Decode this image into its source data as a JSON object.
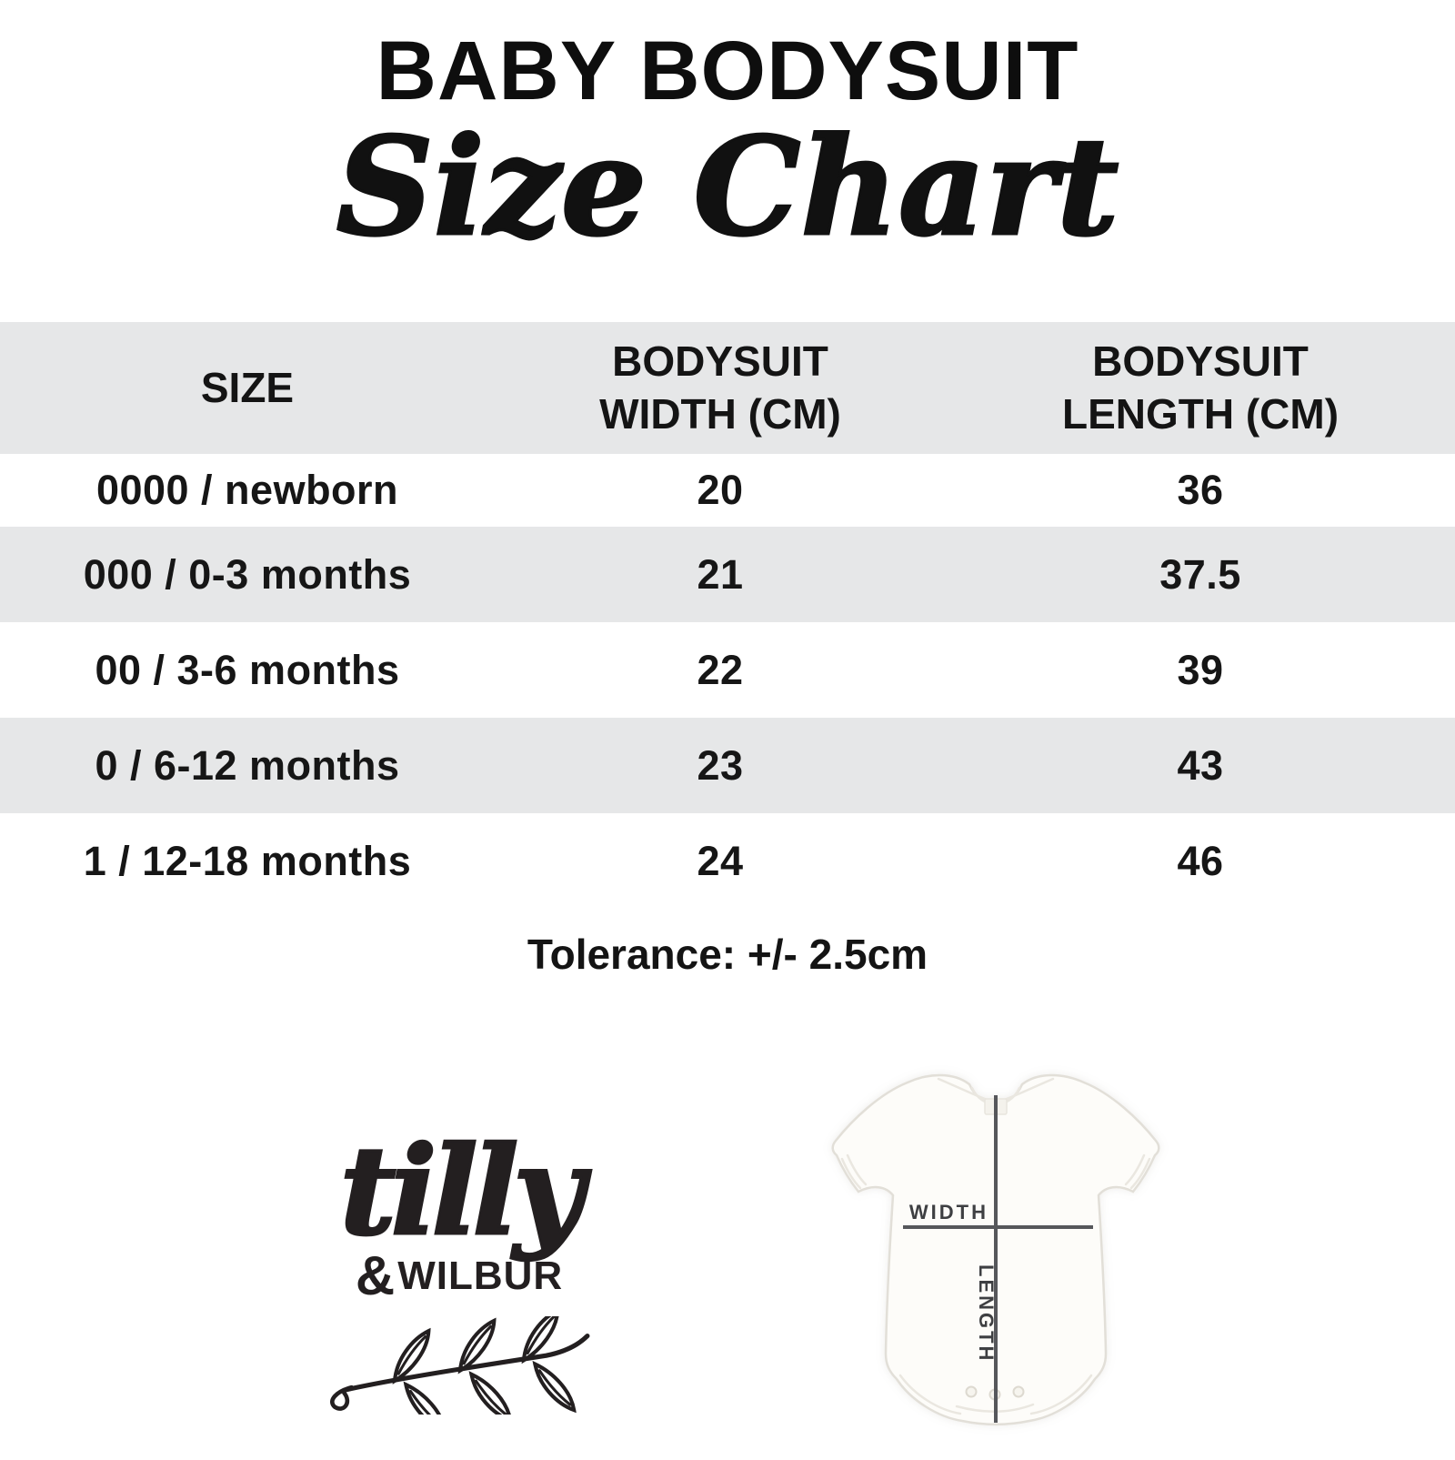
{
  "title": "BABY BODYSUIT",
  "subtitle": "Size Chart",
  "table": {
    "columns": [
      "SIZE",
      "BODYSUIT WIDTH (CM)",
      "BODYSUIT LENGTH (CM)"
    ],
    "rows": [
      {
        "size": "0000 / newborn",
        "width": "20",
        "length": "36"
      },
      {
        "size": "000 / 0-3 months",
        "width": "21",
        "length": "37.5"
      },
      {
        "size": "00 / 3-6 months",
        "width": "22",
        "length": "39"
      },
      {
        "size": "0 / 6-12 months",
        "width": "23",
        "length": "43"
      },
      {
        "size": "1 / 12-18 months",
        "width": "24",
        "length": "46"
      }
    ],
    "stripe_color": "#e6e7e8"
  },
  "tolerance": "Tolerance: +/- 2.5cm",
  "logo": {
    "script": "tilly",
    "ampersand": "&",
    "name": "WILBUR"
  },
  "diagram": {
    "width_label": "WIDTH",
    "length_label": "LENGTH",
    "line_color": "#56575b"
  },
  "chart_data": {
    "type": "table",
    "title": "BABY BODYSUIT Size Chart",
    "columns": [
      "SIZE",
      "BODYSUIT WIDTH (CM)",
      "BODYSUIT LENGTH (CM)"
    ],
    "rows": [
      [
        "0000 / newborn",
        20,
        36
      ],
      [
        "000 / 0-3 months",
        21,
        37.5
      ],
      [
        "00 / 3-6 months",
        22,
        39
      ],
      [
        "0 / 6-12 months",
        23,
        43
      ],
      [
        "1 / 12-18 months",
        24,
        46
      ]
    ],
    "note": "Tolerance: +/- 2.5cm",
    "layout": {
      "striped_rows": true,
      "stripe_color": "#e6e7e8",
      "header_background": "#e6e7e8"
    }
  }
}
